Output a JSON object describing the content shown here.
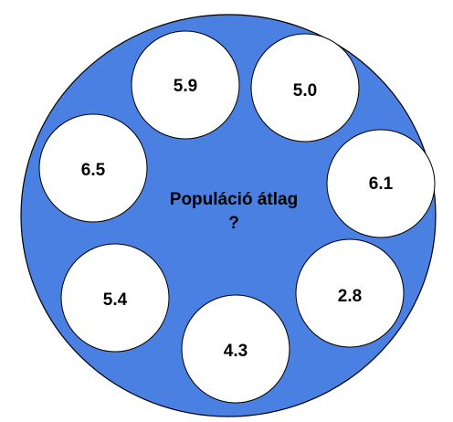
{
  "colors": {
    "population_fill": "#4a80e2",
    "population_stroke": "#000000",
    "sample_fill": "#ffffff",
    "sample_stroke": "#000000",
    "text": "#000000"
  },
  "population": {
    "title": "Populáció átlag",
    "unknown_mark": "?"
  },
  "samples": [
    {
      "value": "5.9"
    },
    {
      "value": "5.0"
    },
    {
      "value": "6.5"
    },
    {
      "value": "6.1"
    },
    {
      "value": "5.4"
    },
    {
      "value": "2.8"
    },
    {
      "value": "4.3"
    }
  ]
}
